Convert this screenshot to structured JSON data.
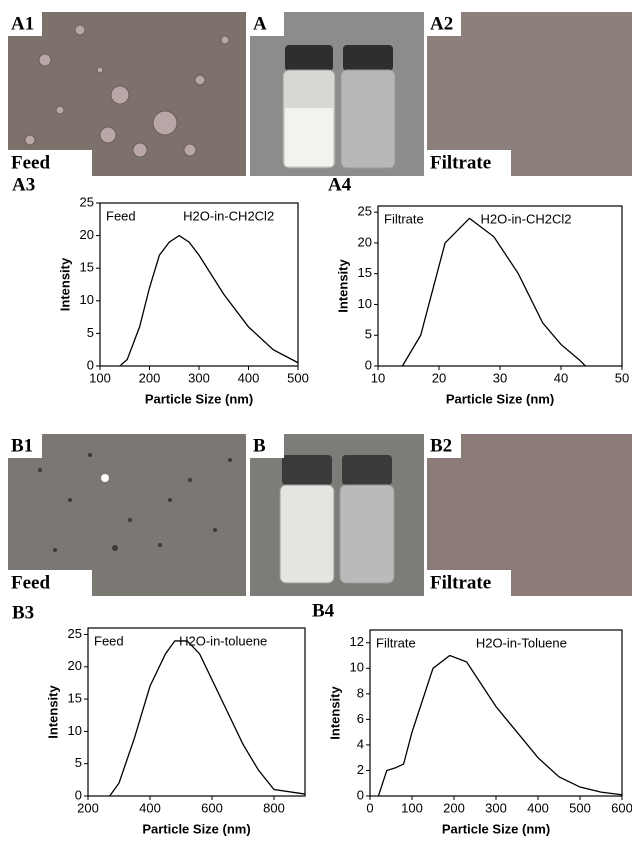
{
  "panels": [
    {
      "label": "A1",
      "caption": "Feed"
    },
    {
      "label": "A"
    },
    {
      "label": "A2",
      "caption": "Filtrate"
    },
    {
      "label": "B1",
      "caption": "Feed"
    },
    {
      "label": "B"
    },
    {
      "label": "B2",
      "caption": "Filtrate"
    }
  ],
  "chart_data": [
    {
      "type": "line",
      "panel": "A3",
      "annotations": [
        "Feed",
        "H2O-in-CH2Cl2"
      ],
      "xlabel": "Particle Size (nm)",
      "ylabel": "Intensity",
      "color": "#000000",
      "x": [
        140,
        155,
        180,
        200,
        220,
        240,
        260,
        280,
        300,
        350,
        400,
        450,
        500
      ],
      "values": [
        0,
        1,
        6,
        12,
        17,
        19,
        20,
        19,
        17,
        11,
        6,
        2.5,
        0.5
      ],
      "xlim": [
        100,
        500
      ],
      "ylim": [
        0,
        25
      ],
      "xticks": [
        100,
        200,
        300,
        400,
        500
      ],
      "yticks": [
        0,
        5,
        10,
        15,
        20,
        25
      ]
    },
    {
      "type": "line",
      "panel": "A4",
      "annotations": [
        "Filtrate",
        "H2O-in-CH2Cl2"
      ],
      "xlabel": "Particle Size (nm)",
      "ylabel": "Intensity",
      "color": "#000000",
      "x": [
        14,
        17,
        21,
        25,
        29,
        33,
        37,
        40,
        43,
        44
      ],
      "values": [
        0,
        5,
        20,
        24,
        21,
        15,
        7,
        3.5,
        1,
        0
      ],
      "xlim": [
        10,
        50
      ],
      "ylim": [
        0,
        26
      ],
      "xticks": [
        10,
        20,
        30,
        40,
        50
      ],
      "yticks": [
        0,
        5,
        10,
        15,
        20,
        25
      ]
    },
    {
      "type": "line",
      "panel": "B3",
      "annotations": [
        "Feed",
        "H2O-in-toluene"
      ],
      "xlabel": "Particle Size (nm)",
      "ylabel": "Intensity",
      "color": "#000000",
      "x": [
        270,
        300,
        350,
        400,
        450,
        480,
        520,
        560,
        600,
        650,
        700,
        750,
        800,
        900
      ],
      "values": [
        0,
        2,
        9,
        17,
        22,
        24,
        24,
        22,
        18,
        13,
        8,
        4,
        1,
        0.3
      ],
      "xlim": [
        200,
        900
      ],
      "ylim": [
        0,
        26
      ],
      "xticks": [
        200,
        400,
        600,
        800
      ],
      "yticks": [
        0,
        5,
        10,
        15,
        20,
        25
      ]
    },
    {
      "type": "line",
      "panel": "B4",
      "annotations": [
        "Filtrate",
        "H2O-in-Toluene"
      ],
      "xlabel": "Particle Size (nm)",
      "ylabel": "Intensity",
      "color": "#000000",
      "x": [
        20,
        40,
        60,
        80,
        100,
        150,
        190,
        230,
        300,
        400,
        450,
        500,
        550,
        600
      ],
      "values": [
        0,
        2,
        2.2,
        2.5,
        5,
        10,
        11,
        10.5,
        7,
        3,
        1.5,
        0.7,
        0.3,
        0.1
      ],
      "xlim": [
        0,
        600
      ],
      "ylim": [
        0,
        13
      ],
      "xticks": [
        0,
        100,
        200,
        300,
        400,
        500,
        600
      ],
      "yticks": [
        0,
        2,
        4,
        6,
        8,
        10,
        12
      ]
    }
  ]
}
